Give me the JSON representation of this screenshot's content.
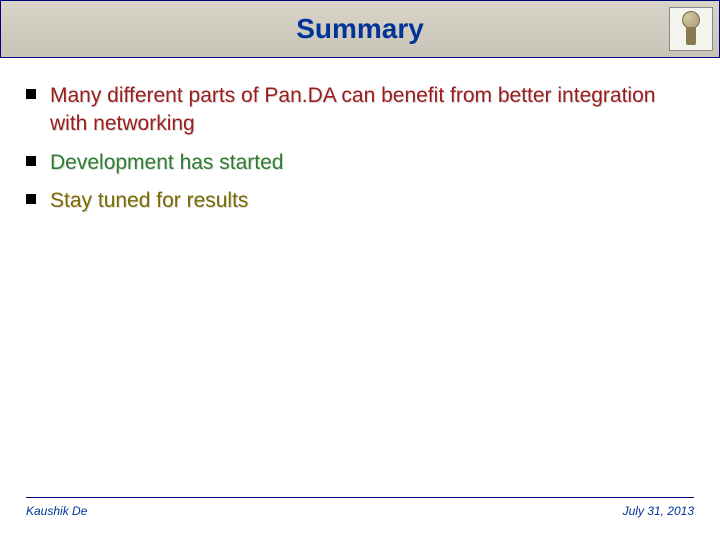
{
  "title": "Summary",
  "title_color": "#003399",
  "title_fontsize": 28,
  "title_bar_bg_top": "#d8d4c8",
  "title_bar_bg_bottom": "#c8c4b8",
  "title_bar_border": "#000080",
  "bullets": [
    {
      "text": "Many different parts of Pan.DA can benefit from better integration with networking",
      "color": "#9b1c1c"
    },
    {
      "text": "Development has started",
      "color": "#2e7d32"
    },
    {
      "text": "Stay tuned for results",
      "color": "#7a6a00"
    }
  ],
  "bullet_marker_color": "#000000",
  "bullet_fontsize": 21,
  "footer": {
    "author": "Kaushik De",
    "date": "July 31, 2013",
    "color": "#003399",
    "line_color": "#000080",
    "fontsize": 12
  },
  "icon_name": "atlas-figure-icon"
}
